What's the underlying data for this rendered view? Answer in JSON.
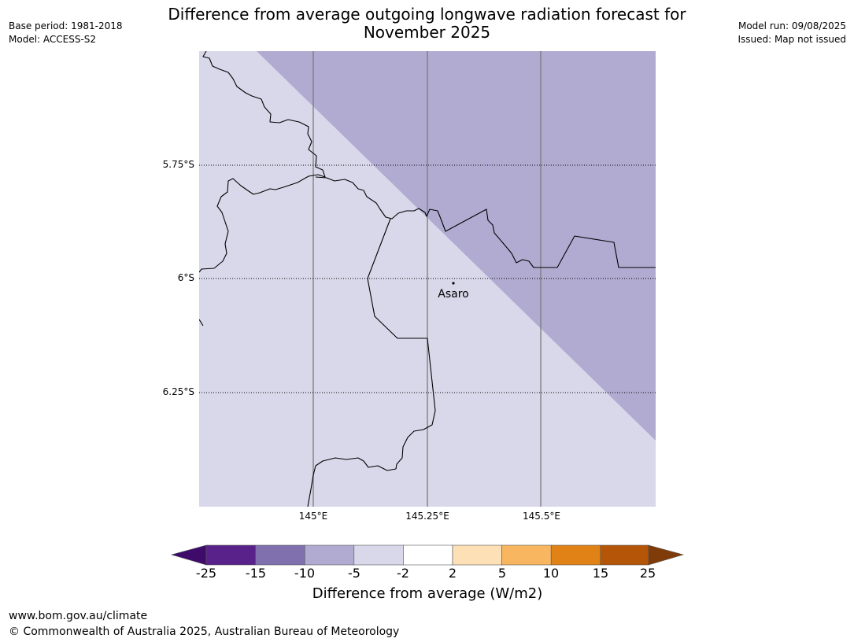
{
  "header": {
    "title_line1": "Difference from average outgoing longwave radiation forecast for",
    "title_line2": "November 2025",
    "base_period": "Base period: 1981-2018",
    "model": "Model: ACCESS-S2",
    "model_run": "Model run: 09/08/2025",
    "issued": "Issued: Map not issued"
  },
  "map": {
    "lat_labels": [
      "5.75°S",
      "6°S",
      "6.25°S"
    ],
    "lon_labels": [
      "145°E",
      "145.25°E",
      "145.5°E"
    ],
    "place": "Asaro",
    "colors": {
      "minus2_to_minus5": "#d8d8ea",
      "minus5_to_minus10": "#b1abd2"
    }
  },
  "colorbar": {
    "title": "Difference from average (W/m2)",
    "ticks": [
      "-25",
      "-15",
      "-10",
      "-5",
      "-2",
      "2",
      "5",
      "10",
      "15",
      "25"
    ],
    "colors": [
      "#3f0b6b",
      "#59228a",
      "#8070ae",
      "#b1abd2",
      "#d8d8ea",
      "#ffffff",
      "#fde0b6",
      "#f9b660",
      "#e08216",
      "#b45508",
      "#7f3b08"
    ]
  },
  "footer": {
    "url": "www.bom.gov.au/climate",
    "copyright": "© Commonwealth of Australia 2025, Australian Bureau of Meteorology"
  }
}
